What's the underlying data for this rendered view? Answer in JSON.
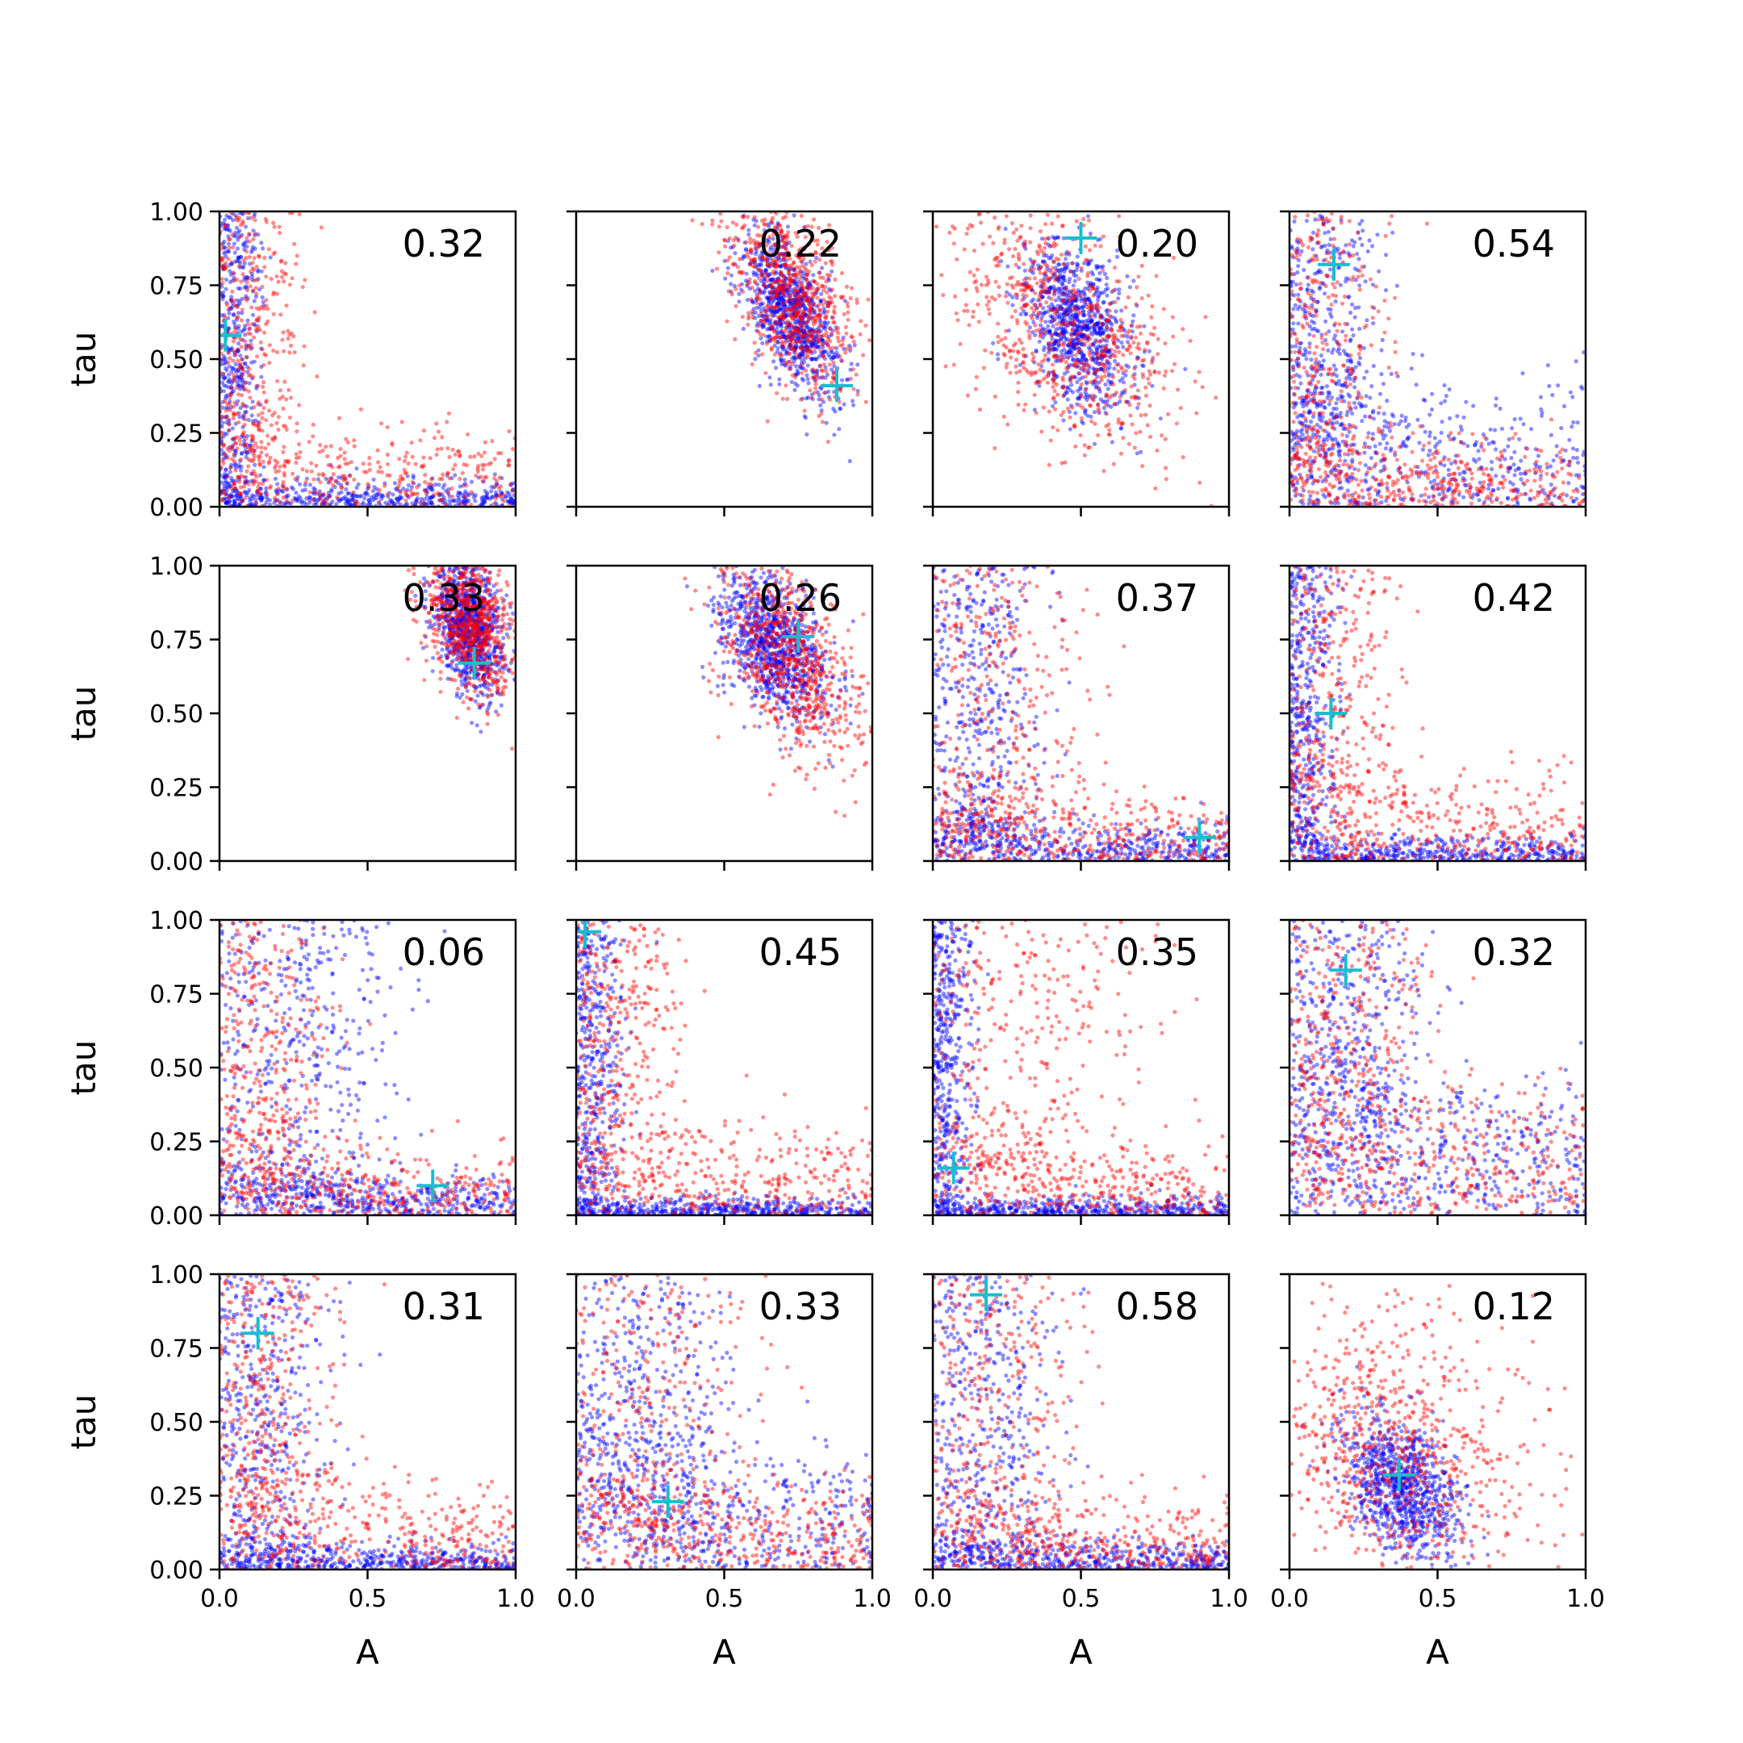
{
  "chart_data": {
    "type": "scatter",
    "layout": {
      "rows": 4,
      "cols": 4
    },
    "xlim": [
      0.0,
      1.0
    ],
    "ylim": [
      0.0,
      1.0
    ],
    "xticks": [
      0.0,
      0.5,
      1.0
    ],
    "xtick_labels": [
      "0.0",
      "0.5",
      "1.0"
    ],
    "yticks": [
      0.0,
      0.25,
      0.5,
      0.75,
      1.0
    ],
    "ytick_labels": [
      "0.00",
      "0.25",
      "0.50",
      "0.75",
      "1.00"
    ],
    "xlabel": "A",
    "ylabel": "tau",
    "colors": {
      "series_blue": "#0000ff",
      "series_red": "#ff0000",
      "marker": "#17becf"
    },
    "panels": [
      {
        "label": "0.32",
        "marker": [
          0.02,
          0.58
        ],
        "blue": {
          "shape": "L",
          "tau_floor": 0.05,
          "A_floor": 0.04
        },
        "red": {
          "shape": "L",
          "tau_floor": 0.2,
          "A_floor": 0.1
        }
      },
      {
        "label": "0.22",
        "marker": [
          0.88,
          0.41
        ],
        "blue": {
          "shape": "blob",
          "center": [
            0.72,
            0.66
          ],
          "spread": [
            0.08,
            0.14
          ],
          "corr": -0.6
        },
        "red": {
          "shape": "blob",
          "center": [
            0.73,
            0.72
          ],
          "spread": [
            0.11,
            0.16
          ],
          "corr": -0.5
        }
      },
      {
        "label": "0.20",
        "marker": [
          0.5,
          0.91
        ],
        "blue": {
          "shape": "blob",
          "center": [
            0.49,
            0.6
          ],
          "spread": [
            0.09,
            0.14
          ],
          "corr": -0.3
        },
        "red": {
          "shape": "blob",
          "center": [
            0.46,
            0.6
          ],
          "spread": [
            0.2,
            0.22
          ],
          "corr": -0.5
        }
      },
      {
        "label": "0.54",
        "marker": [
          0.15,
          0.82
        ],
        "blue": {
          "shape": "L",
          "tau_floor": 0.3,
          "A_floor": 0.12
        },
        "red": {
          "shape": "L",
          "tau_floor": 0.15,
          "A_floor": 0.12
        }
      },
      {
        "label": "0.33",
        "marker": [
          0.86,
          0.67
        ],
        "blue": {
          "shape": "blob",
          "center": [
            0.84,
            0.8
          ],
          "spread": [
            0.06,
            0.12
          ],
          "corr": -0.4
        },
        "red": {
          "shape": "blob",
          "center": [
            0.84,
            0.82
          ],
          "spread": [
            0.08,
            0.13
          ],
          "corr": -0.4
        }
      },
      {
        "label": "0.26",
        "marker": [
          0.75,
          0.76
        ],
        "blue": {
          "shape": "blob",
          "center": [
            0.67,
            0.73
          ],
          "spread": [
            0.09,
            0.12
          ],
          "corr": -0.4
        },
        "red": {
          "shape": "blob",
          "center": [
            0.72,
            0.68
          ],
          "spread": [
            0.13,
            0.18
          ],
          "corr": -0.6
        }
      },
      {
        "label": "0.37",
        "marker": [
          0.9,
          0.08
        ],
        "blue": {
          "shape": "L",
          "tau_floor": 0.08,
          "A_floor": 0.15
        },
        "red": {
          "shape": "L",
          "tau_floor": 0.15,
          "A_floor": 0.2
        }
      },
      {
        "label": "0.42",
        "marker": [
          0.14,
          0.5
        ],
        "blue": {
          "shape": "L",
          "tau_floor": 0.04,
          "A_floor": 0.05
        },
        "red": {
          "shape": "L",
          "tau_floor": 0.22,
          "A_floor": 0.15
        }
      },
      {
        "label": "0.06",
        "marker": [
          0.72,
          0.1
        ],
        "blue": {
          "shape": "L",
          "tau_floor": 0.08,
          "A_floor": 0.25
        },
        "red": {
          "shape": "L",
          "tau_floor": 0.15,
          "A_floor": 0.15
        }
      },
      {
        "label": "0.45",
        "marker": [
          0.03,
          0.96
        ],
        "blue": {
          "shape": "L",
          "tau_floor": 0.02,
          "A_floor": 0.05
        },
        "red": {
          "shape": "L",
          "tau_floor": 0.22,
          "A_floor": 0.15
        }
      },
      {
        "label": "0.35",
        "marker": [
          0.07,
          0.16
        ],
        "blue": {
          "shape": "L",
          "tau_floor": 0.02,
          "A_floor": 0.04
        },
        "red": {
          "shape": "L",
          "tau_floor": 0.15,
          "A_floor": 0.3
        }
      },
      {
        "label": "0.32",
        "marker": [
          0.19,
          0.83
        ],
        "blue": {
          "shape": "L",
          "tau_floor": 0.35,
          "A_floor": 0.19
        },
        "red": {
          "shape": "L",
          "tau_floor": 0.3,
          "A_floor": 0.2
        }
      },
      {
        "label": "0.31",
        "marker": [
          0.13,
          0.8
        ],
        "blue": {
          "shape": "L",
          "tau_floor": 0.04,
          "A_floor": 0.15
        },
        "red": {
          "shape": "L",
          "tau_floor": 0.25,
          "A_floor": 0.15
        }
      },
      {
        "label": "0.33",
        "marker": [
          0.31,
          0.23
        ],
        "blue": {
          "shape": "L",
          "tau_floor": 0.3,
          "A_floor": 0.22
        },
        "red": {
          "shape": "L",
          "tau_floor": 0.2,
          "A_floor": 0.25
        }
      },
      {
        "label": "0.58",
        "marker": [
          0.18,
          0.93
        ],
        "blue": {
          "shape": "L",
          "tau_floor": 0.05,
          "A_floor": 0.17
        },
        "red": {
          "shape": "L",
          "tau_floor": 0.15,
          "A_floor": 0.2
        }
      },
      {
        "label": "0.12",
        "marker": [
          0.37,
          0.32
        ],
        "blue": {
          "shape": "blob",
          "center": [
            0.38,
            0.28
          ],
          "spread": [
            0.1,
            0.12
          ],
          "corr": -0.4
        },
        "red": {
          "shape": "blob",
          "center": [
            0.35,
            0.4
          ],
          "spread": [
            0.25,
            0.25
          ],
          "corr": -0.3
        }
      }
    ]
  }
}
